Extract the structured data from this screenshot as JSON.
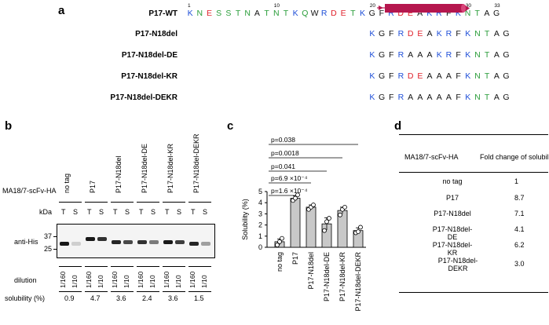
{
  "panels": {
    "a": "a",
    "b": "b",
    "c": "c",
    "d": "d"
  },
  "panel_a": {
    "positions": [
      "1",
      "10",
      "20",
      "30",
      "33"
    ],
    "rows": [
      {
        "name": "P17-WT",
        "seq": [
          "K",
          "N",
          "E",
          "S",
          "S",
          "T",
          "N",
          "A",
          "T",
          "N",
          "T",
          "K",
          "Q",
          "W",
          "R",
          "D",
          "E",
          "T",
          "K",
          "G",
          "F",
          "R",
          "D",
          "E",
          "A",
          "K",
          "R",
          "F",
          "K",
          "N",
          "T",
          "A",
          "G"
        ],
        "colors": [
          "k",
          "g",
          "e",
          "g",
          "g",
          "g",
          "g",
          "x",
          "g",
          "g",
          "g",
          "k",
          "g",
          "x",
          "k",
          "d",
          "e",
          "g",
          "k",
          "x",
          "x",
          "k",
          "d",
          "e",
          "x",
          "k",
          "k",
          "x",
          "k",
          "g",
          "g",
          "x",
          "x"
        ]
      },
      {
        "name": "P17-N18del",
        "seq": [
          "K",
          "G",
          "F",
          "R",
          "D",
          "E",
          "A",
          "K",
          "R",
          "F",
          "K",
          "N",
          "T",
          "A",
          "G"
        ],
        "colors": [
          "k",
          "x",
          "x",
          "k",
          "d",
          "e",
          "x",
          "k",
          "k",
          "x",
          "k",
          "g",
          "g",
          "x",
          "x"
        ]
      },
      {
        "name": "P17-N18del-DE",
        "seq": [
          "K",
          "G",
          "F",
          "R",
          "A",
          "A",
          "A",
          "K",
          "R",
          "F",
          "K",
          "N",
          "T",
          "A",
          "G"
        ],
        "colors": [
          "k",
          "x",
          "x",
          "k",
          "x",
          "x",
          "x",
          "k",
          "k",
          "x",
          "k",
          "g",
          "g",
          "x",
          "x"
        ]
      },
      {
        "name": "P17-N18del-KR",
        "seq": [
          "K",
          "G",
          "F",
          "R",
          "D",
          "E",
          "A",
          "A",
          "A",
          "F",
          "K",
          "N",
          "T",
          "A",
          "G"
        ],
        "colors": [
          "k",
          "x",
          "x",
          "k",
          "d",
          "e",
          "x",
          "x",
          "x",
          "x",
          "k",
          "g",
          "g",
          "x",
          "x"
        ]
      },
      {
        "name": "P17-N18del-DEKR",
        "seq": [
          "K",
          "G",
          "F",
          "R",
          "A",
          "A",
          "A",
          "A",
          "A",
          "F",
          "K",
          "N",
          "T",
          "A",
          "G"
        ],
        "colors": [
          "k",
          "x",
          "x",
          "k",
          "x",
          "x",
          "x",
          "x",
          "x",
          "x",
          "k",
          "g",
          "g",
          "x",
          "x"
        ]
      }
    ]
  },
  "panel_b": {
    "construct_label": "MA18/7-scFv-HA",
    "lanes": [
      "no tag",
      "P17",
      "P17-N18del",
      "P17-N18del-DE",
      "P17-N18del-KR",
      "P17-N18del-DEKR"
    ],
    "ts": [
      "T",
      "S"
    ],
    "kda": "kDa",
    "markers": [
      "37",
      "25"
    ],
    "antibody": "anti-His",
    "dilution_label": "dilution",
    "dilutions": [
      "1/160",
      "1/10"
    ],
    "solubility_label": "solubility (%)",
    "solubility": [
      "0.9",
      "4.7",
      "3.6",
      "2.4",
      "3.6",
      "1.5"
    ]
  },
  "chart_data": {
    "type": "bar",
    "categories": [
      "no tag",
      "P17",
      "P17-N18del",
      "P17-N18del-DE",
      "P17-N18del-KR",
      "P17-N18del-DEKR"
    ],
    "values": [
      0.5,
      4.4,
      3.6,
      2.1,
      3.3,
      1.5
    ],
    "points": [
      [
        0.2,
        0.5,
        0.8
      ],
      [
        4.2,
        4.4,
        4.7
      ],
      [
        3.4,
        3.6,
        3.8
      ],
      [
        1.5,
        2.3,
        2.6
      ],
      [
        2.9,
        3.4,
        3.6
      ],
      [
        1.3,
        1.4,
        1.8
      ]
    ],
    "errors": [
      0.25,
      0.2,
      0.2,
      0.55,
      0.3,
      0.25
    ],
    "ylabel": "Solubility (%)",
    "ylim": [
      0,
      5
    ],
    "yticks": [
      "0",
      "1",
      "2",
      "3",
      "4",
      "5"
    ],
    "pvalues": [
      "p=0.038",
      "p=0.0018",
      "p=0.041",
      "p=6.9 ×10⁻⁴",
      "p=1.6 ×10⁻⁴"
    ],
    "pvalue_targets": [
      5,
      4,
      3,
      2,
      1
    ]
  },
  "panel_d": {
    "headers": [
      "MA18/7-scFv-HA",
      "Fold change of solubility"
    ],
    "rows": [
      [
        "no tag",
        "1"
      ],
      [
        "P17",
        "8.7"
      ],
      [
        "P17-N18del",
        "7.1"
      ],
      [
        "P17-N18del-DE",
        "4.1"
      ],
      [
        "P17-N18del-KR",
        "6.2"
      ],
      [
        "P17-N18del-DEKR",
        "3.0"
      ]
    ]
  },
  "colors": {
    "helix": "#b5174e",
    "bar": "#c8c8c8",
    "blue": "#1f4fd8",
    "red": "#e0202a",
    "green": "#2a9d3a"
  }
}
